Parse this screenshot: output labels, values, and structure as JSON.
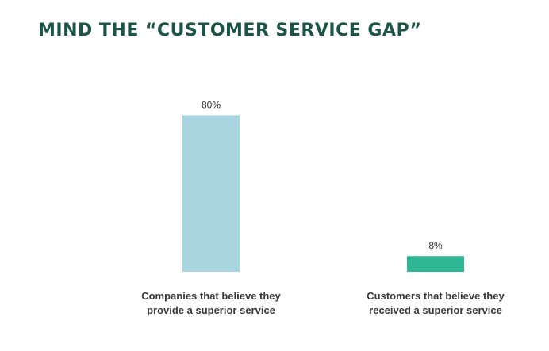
{
  "title": "MIND THE “CUSTOMER SERVICE GAP”",
  "colors": {
    "title": "#1c5446",
    "text": "#3a3a3a"
  },
  "chart_data": {
    "type": "bar",
    "title": "MIND THE “CUSTOMER SERVICE GAP”",
    "xlabel": "",
    "ylabel": "",
    "ylim": [
      0,
      100
    ],
    "grid": false,
    "legend": "none",
    "unit": "%",
    "categories": [
      [
        "Companies that believe they",
        "provide a superior service"
      ],
      [
        "Customers that believe they",
        "received a superior service"
      ]
    ],
    "values": [
      80,
      8
    ],
    "value_labels": [
      "80%",
      "8%"
    ],
    "bar_colors": [
      "#a9d5e0",
      "#2fb694"
    ]
  }
}
